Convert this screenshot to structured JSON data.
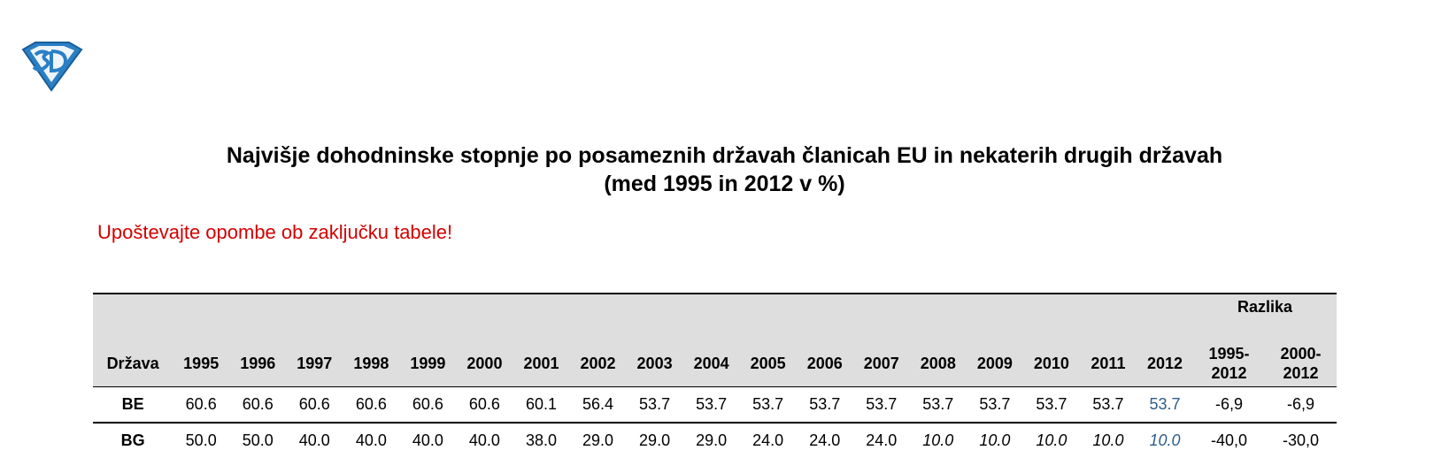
{
  "logo": {
    "text": "SD"
  },
  "title": {
    "line1": "Najvišje dohodninske stopnje po posameznih državah članicah EU in nekaterih drugih državah",
    "line2": "(med 1995 in 2012 v %)"
  },
  "note": "Upoštevajte opombe ob zaključku tabele!",
  "table": {
    "group_header": "Razlika",
    "country_header": "Država",
    "years": [
      "1995",
      "1996",
      "1997",
      "1998",
      "1999",
      "2000",
      "2001",
      "2002",
      "2003",
      "2004",
      "2005",
      "2006",
      "2007",
      "2008",
      "2009",
      "2010",
      "2011",
      "2012"
    ],
    "diff_headers": [
      {
        "line1": "1995-",
        "line2": "2012"
      },
      {
        "line1": "2000-",
        "line2": "2012"
      }
    ],
    "rows": [
      {
        "country": "BE",
        "values": [
          "60.6",
          "60.6",
          "60.6",
          "60.6",
          "60.6",
          "60.6",
          "60.1",
          "56.4",
          "53.7",
          "53.7",
          "53.7",
          "53.7",
          "53.7",
          "53.7",
          "53.7",
          "53.7",
          "53.7",
          "53.7"
        ],
        "diffs": [
          "-6,9",
          "-6,9"
        ]
      },
      {
        "country": "BG",
        "values": [
          "50.0",
          "50.0",
          "40.0",
          "40.0",
          "40.0",
          "40.0",
          "38.0",
          "29.0",
          "29.0",
          "29.0",
          "24.0",
          "24.0",
          "24.0",
          "10.0",
          "10.0",
          "10.0",
          "10.0",
          "10.0"
        ],
        "diffs": [
          "-40,0",
          "-30,0"
        ]
      }
    ],
    "highlight_color": "#2c5d8a",
    "note_color": "#d40000"
  }
}
